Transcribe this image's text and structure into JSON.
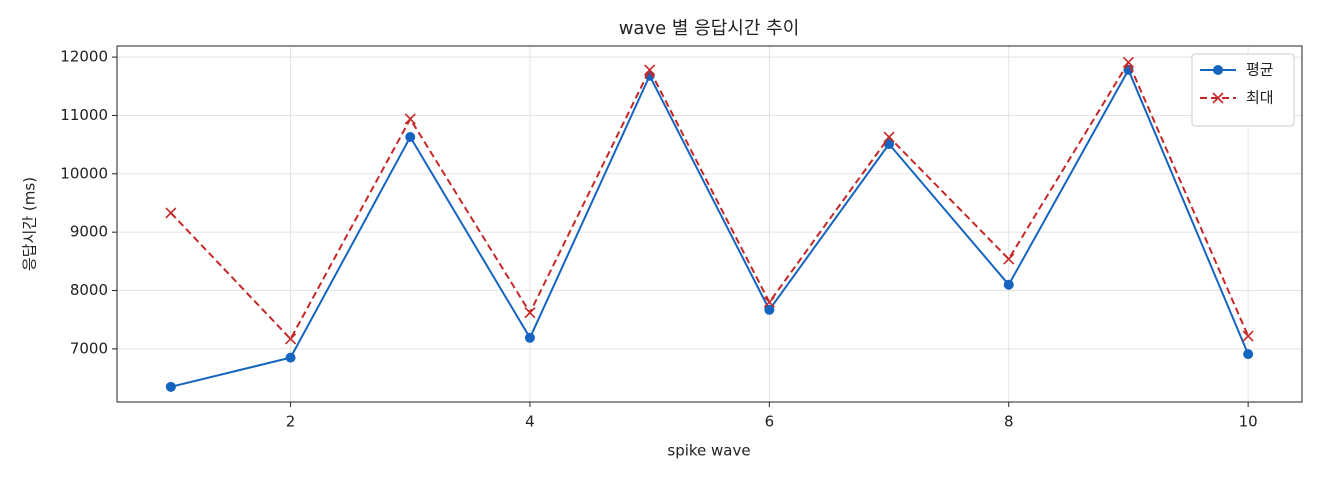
{
  "chart_data": {
    "type": "line",
    "title": "wave 별 응답시간 추이",
    "xlabel": "spike wave",
    "ylabel": "응답시간 (ms)",
    "x": [
      1,
      2,
      3,
      4,
      5,
      6,
      7,
      8,
      9,
      10
    ],
    "series": [
      {
        "name": "평균",
        "color": "#1565c0",
        "marker": "circle",
        "linestyle": "solid",
        "values": [
          6350,
          6850,
          10630,
          7190,
          11680,
          7670,
          10510,
          8100,
          11780,
          6910
        ]
      },
      {
        "name": "최대",
        "color": "#c62828",
        "marker": "x",
        "linestyle": "dashed",
        "values": [
          9330,
          7170,
          10940,
          7620,
          11780,
          7800,
          10630,
          8540,
          11910,
          7220
        ]
      }
    ],
    "xlim": [
      0.55,
      10.45
    ],
    "ylim": [
      6090,
      12190
    ],
    "xticks": [
      2,
      4,
      6,
      8,
      10
    ],
    "yticks": [
      7000,
      8000,
      9000,
      10000,
      11000,
      12000
    ],
    "grid": true,
    "legend": "upper right"
  }
}
